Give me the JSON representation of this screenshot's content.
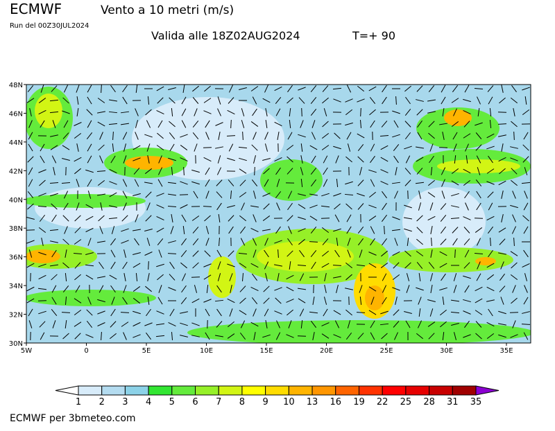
{
  "header": {
    "model": "ECMWF",
    "title": "Vento a 10 metri (m/s)",
    "run": "Run del 00Z30JUL2024",
    "valid": "Valida alle 18Z02AUG2024",
    "step": "T=+ 90"
  },
  "map": {
    "lat_labels": [
      "48N",
      "46N",
      "44N",
      "42N",
      "40N",
      "38N",
      "36N",
      "34N",
      "32N",
      "30N"
    ],
    "lon_labels": [
      "5W",
      "0",
      "5E",
      "10E",
      "15E",
      "20E",
      "25E",
      "30E",
      "35E"
    ]
  },
  "colorbar": {
    "levels": [
      1,
      2,
      3,
      4,
      5,
      6,
      7,
      8,
      9,
      10,
      13,
      16,
      19,
      22,
      25,
      28,
      31,
      35
    ],
    "colors": [
      "#d8ecfa",
      "#b4dcf0",
      "#8cd2e8",
      "#32e632",
      "#64eb3c",
      "#96f028",
      "#d2f514",
      "#ffff00",
      "#ffdc00",
      "#ffb400",
      "#ff9600",
      "#ff6400",
      "#ff3200",
      "#ff0000",
      "#e60000",
      "#c80000",
      "#a00000"
    ],
    "under_color": "#ffffff",
    "over_color": "#8c00d2"
  },
  "footer": "ECMWF per 3bmeteo.com"
}
